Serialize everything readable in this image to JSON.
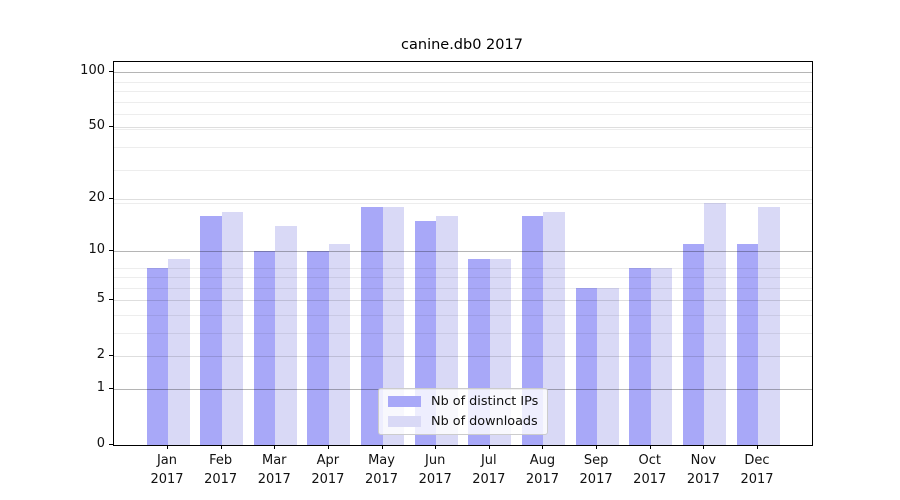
{
  "figure": {
    "title": "canine.db0 2017"
  },
  "chart_data": {
    "type": "bar",
    "title": "canine.db0 2017",
    "categories": [
      "Jan",
      "Feb",
      "Mar",
      "Apr",
      "May",
      "Jun",
      "Jul",
      "Aug",
      "Sep",
      "Oct",
      "Nov",
      "Dec"
    ],
    "x_year": "2017",
    "series": [
      {
        "name": "Nb of distinct IPs",
        "color": "#a8a8f8",
        "values": [
          8,
          16,
          10,
          10,
          18,
          15,
          9,
          16,
          6,
          8,
          11,
          11
        ]
      },
      {
        "name": "Nb of downloads",
        "color": "#d9d9f6",
        "values": [
          9,
          17,
          14,
          11,
          18,
          16,
          9,
          17,
          6,
          8,
          19,
          18
        ]
      }
    ],
    "y_axis": {
      "scale": "log10(1+y)",
      "tick_labels": [
        100,
        50,
        20,
        10,
        5,
        2,
        1,
        0
      ],
      "top_value": 113,
      "grid": "on",
      "gridlines_major": [
        1,
        10,
        100
      ],
      "gridlines_mid": [
        2,
        5,
        20,
        50
      ],
      "gridlines_minor": [
        3,
        4,
        6,
        7,
        8,
        19,
        29,
        39,
        49,
        59,
        69,
        79,
        89
      ]
    },
    "legend": {
      "position": "lower center",
      "entries": [
        "Nb of distinct IPs",
        "Nb of downloads"
      ]
    }
  }
}
